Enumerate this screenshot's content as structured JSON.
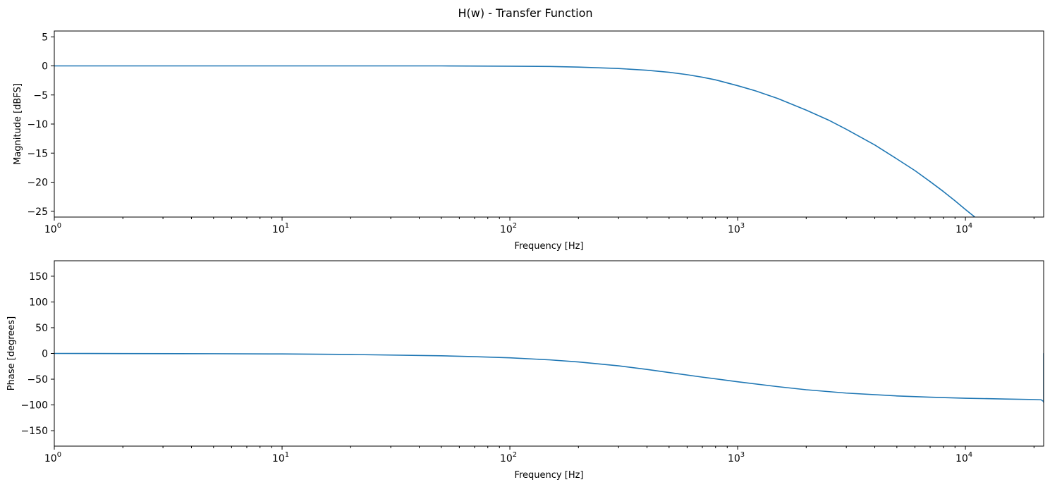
{
  "figure": {
    "title": "H(w) - Transfer Function"
  },
  "chart_data": [
    {
      "type": "line",
      "title": "",
      "xlabel": "Frequency [Hz]",
      "ylabel": "Magnitude [dBFS]",
      "xscale": "log",
      "xlim": [
        1,
        22050
      ],
      "ylim": [
        -26,
        6
      ],
      "xticks": [
        {
          "value": 1,
          "base": "10",
          "exp": "0"
        },
        {
          "value": 10,
          "base": "10",
          "exp": "1"
        },
        {
          "value": 100,
          "base": "10",
          "exp": "2"
        },
        {
          "value": 1000,
          "base": "10",
          "exp": "3"
        },
        {
          "value": 10000,
          "base": "10",
          "exp": "4"
        }
      ],
      "yticks": [
        {
          "value": 5,
          "label": "5"
        },
        {
          "value": 0,
          "label": "0"
        },
        {
          "value": -5,
          "label": "−5"
        },
        {
          "value": -10,
          "label": "−10"
        },
        {
          "value": -15,
          "label": "−15"
        },
        {
          "value": -20,
          "label": "−20"
        },
        {
          "value": -25,
          "label": "−25"
        }
      ],
      "grid": false,
      "color": "#1f77b4",
      "series": [
        {
          "x": [
            1,
            2,
            5,
            10,
            20,
            50,
            100,
            150,
            200,
            300,
            400,
            500,
            600,
            700,
            800,
            1000,
            1200,
            1500,
            2000,
            2500,
            3000,
            4000,
            5000,
            6000,
            7000,
            8000,
            9000,
            10000,
            11000
          ],
          "y": [
            0,
            0,
            0,
            0,
            0,
            0,
            -0.05,
            -0.1,
            -0.2,
            -0.45,
            -0.75,
            -1.1,
            -1.5,
            -1.95,
            -2.4,
            -3.4,
            -4.3,
            -5.6,
            -7.6,
            -9.3,
            -10.9,
            -13.6,
            -16.0,
            -18.0,
            -19.9,
            -21.6,
            -23.2,
            -24.7,
            -26.0
          ]
        }
      ]
    },
    {
      "type": "line",
      "title": "",
      "xlabel": "Frequency [Hz]",
      "ylabel": "Phase [degrees]",
      "xscale": "log",
      "xlim": [
        1,
        22050
      ],
      "ylim": [
        -180,
        180
      ],
      "xticks": [
        {
          "value": 1,
          "base": "10",
          "exp": "0"
        },
        {
          "value": 10,
          "base": "10",
          "exp": "1"
        },
        {
          "value": 100,
          "base": "10",
          "exp": "2"
        },
        {
          "value": 1000,
          "base": "10",
          "exp": "3"
        },
        {
          "value": 10000,
          "base": "10",
          "exp": "4"
        }
      ],
      "yticks": [
        {
          "value": 150,
          "label": "150"
        },
        {
          "value": 100,
          "label": "100"
        },
        {
          "value": 50,
          "label": "50"
        },
        {
          "value": 0,
          "label": "0"
        },
        {
          "value": -50,
          "label": "−50"
        },
        {
          "value": -100,
          "label": "−100"
        },
        {
          "value": -150,
          "label": "−150"
        }
      ],
      "grid": false,
      "color": "#1f77b4",
      "series": [
        {
          "x": [
            1,
            2,
            5,
            10,
            20,
            50,
            70,
            100,
            150,
            200,
            300,
            400,
            500,
            700,
            1000,
            1500,
            2000,
            3000,
            5000,
            7000,
            10000,
            15000,
            20000,
            21500,
            22000,
            22050,
            22050
          ],
          "y": [
            0,
            -0.2,
            -0.5,
            -1.0,
            -2.0,
            -4.5,
            -6.2,
            -8.5,
            -12.5,
            -16.5,
            -24,
            -31,
            -37,
            -46,
            -55,
            -64.5,
            -70.5,
            -77,
            -82.5,
            -85,
            -87,
            -88.5,
            -89.5,
            -90,
            -93,
            -95,
            0
          ]
        }
      ]
    }
  ]
}
